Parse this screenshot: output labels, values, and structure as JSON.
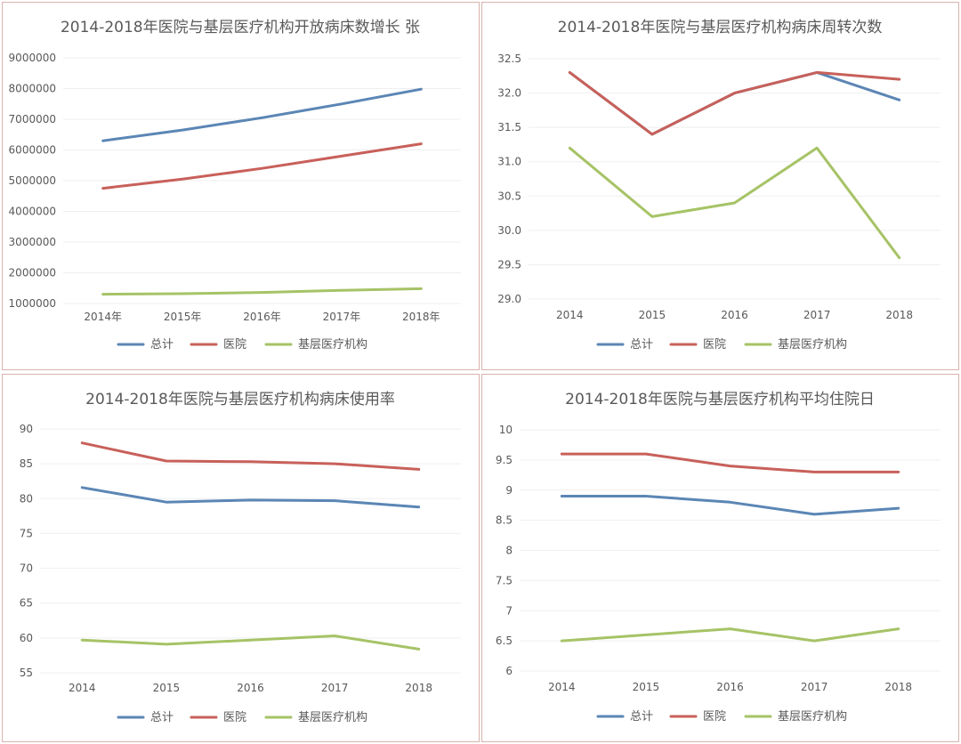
{
  "colors": {
    "total": "#5b86b5",
    "hospital": "#c8605a",
    "grassroots": "#a6c366"
  },
  "legend": [
    "总计",
    "医院",
    "基层医疗机构"
  ],
  "chart_data": [
    {
      "type": "line",
      "title": "2014-2018年医院与基层医疗机构开放病床数增长 张",
      "categories": [
        "2014年",
        "2015年",
        "2016年",
        "2017年",
        "2018年"
      ],
      "yticks": [
        "1000000",
        "2000000",
        "3000000",
        "4000000",
        "5000000",
        "6000000",
        "7000000",
        "8000000",
        "9000000"
      ],
      "ylim": [
        1000000,
        9000000
      ],
      "series": [
        {
          "name": "总计",
          "values": [
            6300000,
            6650000,
            7050000,
            7500000,
            7980000
          ]
        },
        {
          "name": "医院",
          "values": [
            4750000,
            5050000,
            5400000,
            5800000,
            6200000
          ]
        },
        {
          "name": "基层医疗机构",
          "values": [
            1300000,
            1320000,
            1360000,
            1430000,
            1480000
          ]
        }
      ]
    },
    {
      "type": "line",
      "title": "2014-2018年医院与基层医疗机构病床周转次数",
      "categories": [
        "2014",
        "2015",
        "2016",
        "2017",
        "2018"
      ],
      "yticks": [
        "29.0",
        "29.5",
        "30.0",
        "30.5",
        "31.0",
        "31.5",
        "32.0",
        "32.5"
      ],
      "ylim": [
        29.0,
        32.5
      ],
      "series": [
        {
          "name": "总计",
          "values": [
            32.3,
            31.4,
            32.0,
            32.3,
            31.9
          ]
        },
        {
          "name": "医院",
          "values": [
            32.3,
            31.4,
            32.0,
            32.3,
            32.2
          ]
        },
        {
          "name": "基层医疗机构",
          "values": [
            31.2,
            30.2,
            30.4,
            31.2,
            29.6
          ]
        }
      ]
    },
    {
      "type": "line",
      "title": "2014-2018年医院与基层医疗机构病床使用率",
      "categories": [
        "2014",
        "2015",
        "2016",
        "2017",
        "2018"
      ],
      "yticks": [
        "55",
        "60",
        "65",
        "70",
        "75",
        "80",
        "85",
        "90"
      ],
      "ylim": [
        55,
        90
      ],
      "series": [
        {
          "name": "总计",
          "values": [
            81.6,
            79.5,
            79.8,
            79.7,
            78.8
          ]
        },
        {
          "name": "医院",
          "values": [
            88.0,
            85.4,
            85.3,
            85.0,
            84.2
          ]
        },
        {
          "name": "基层医疗机构",
          "values": [
            59.7,
            59.1,
            59.7,
            60.3,
            58.4
          ]
        }
      ]
    },
    {
      "type": "line",
      "title": "2014-2018年医院与基层医疗机构平均住院日",
      "categories": [
        "2014",
        "2015",
        "2016",
        "2017",
        "2018"
      ],
      "yticks": [
        "6",
        "6.5",
        "7",
        "7.5",
        "8",
        "8.5",
        "9",
        "9.5",
        "10"
      ],
      "ylim": [
        6,
        10
      ],
      "series": [
        {
          "name": "总计",
          "values": [
            8.9,
            8.9,
            8.8,
            8.6,
            8.7
          ]
        },
        {
          "name": "医院",
          "values": [
            9.6,
            9.6,
            9.4,
            9.3,
            9.3
          ]
        },
        {
          "name": "基层医疗机构",
          "values": [
            6.5,
            6.6,
            6.7,
            6.5,
            6.7
          ]
        }
      ]
    }
  ]
}
